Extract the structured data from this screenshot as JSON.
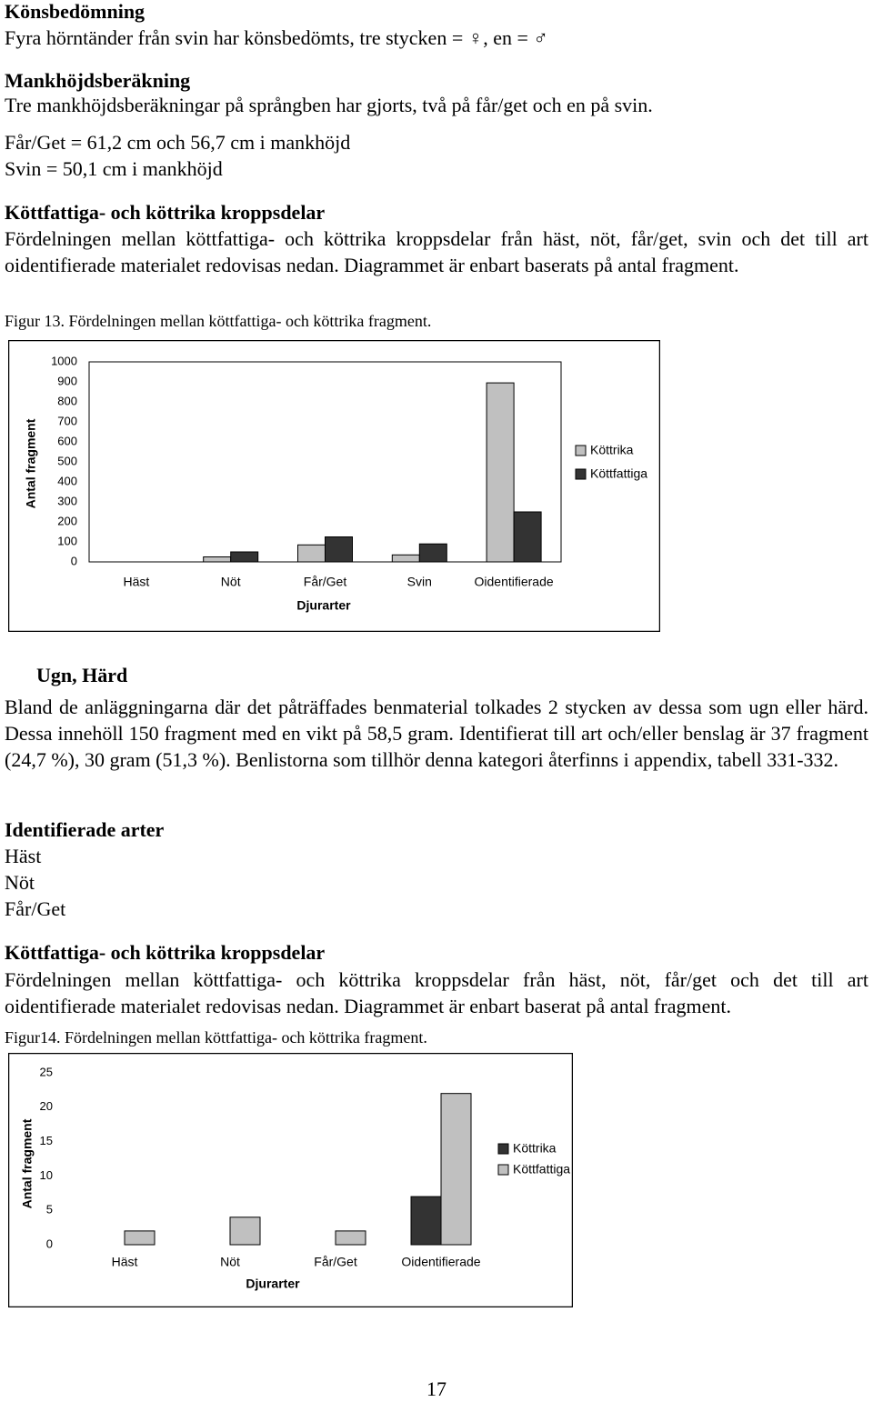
{
  "sections": [
    {
      "heading": "Könsbedömning",
      "paragraphs": [
        "Fyra hörntänder från svin har könsbedömts, tre stycken = ♀, en = ♂"
      ]
    },
    {
      "heading": "Mankhöjdsberäkning",
      "paragraphs": [
        "Tre mankhöjdsberäkningar på språngben har gjorts, två på får/get och en på svin.",
        "Får/Get = 61,2 cm och 56,7 cm i mankhöjd",
        "Svin = 50,1 cm i mankhöjd"
      ]
    },
    {
      "heading": "Köttfattiga- och köttrika kroppsdelar",
      "paragraphs": [
        "Fördelningen mellan köttfattiga- och köttrika kroppsdelar från häst, nöt, får/get, svin och det till art oidentifierade materialet redovisas nedan. Diagrammet är enbart baserats på antal fragment."
      ],
      "caption": "Figur 13. Fördelningen mellan köttfattiga- och köttrika fragment.",
      "figure": {
        "type": "bar",
        "x_label": "Djurarter",
        "y_label": "Antal fragment",
        "categories": [
          "Häst",
          "Nöt",
          "Får/Get",
          "Svin",
          "Oidentifierade"
        ],
        "series": [
          {
            "name": "Köttrika",
            "color": "#c0c0c0",
            "values": [
              0,
              25,
              85,
              35,
              895
            ]
          },
          {
            "name": "Köttfattiga",
            "color": "#333333",
            "values": [
              0,
              50,
              125,
              90,
              250
            ]
          }
        ],
        "ylim": [
          0,
          1000
        ],
        "yticks": [
          0,
          100,
          200,
          300,
          400,
          500,
          600,
          700,
          800,
          900,
          1000
        ],
        "frame": true
      }
    },
    {
      "heading": "Ugn, Härd",
      "paragraphs": [
        "Bland de anläggningarna där det påträffades benmaterial tolkades 2 stycken av dessa som ugn eller härd. Dessa innehöll 150 fragment med en vikt på 58,5 gram. Identifierat till art och/eller benslag är 37 fragment (24,7 %), 30 gram (51,3 %). Benlistorna som tillhör denna kategori återfinns i appendix, tabell 331-332."
      ]
    },
    {
      "heading": "Identifierade arter",
      "paragraphs": [
        "Häst",
        "Nöt",
        "Får/Get"
      ]
    },
    {
      "heading": "Köttfattiga- och köttrika kroppsdelar",
      "paragraphs": [
        "Fördelningen mellan köttfattiga- och köttrika kroppsdelar från häst, nöt, får/get och det till art oidentifierade materialet redovisas nedan. Diagrammet är enbart baserat på antal fragment."
      ],
      "caption": "Figur14. Fördelningen mellan köttfattiga- och köttrika fragment.",
      "figure": {
        "type": "bar",
        "x_label": "Djurarter",
        "y_label": "Antal fragment",
        "categories": [
          "Häst",
          "Nöt",
          "Får/Get",
          "Oidentifierade"
        ],
        "series": [
          {
            "name": "Köttrika",
            "color": "#333333",
            "values": [
              0,
              0,
              0,
              7
            ]
          },
          {
            "name": "Köttfattiga",
            "color": "#c0c0c0",
            "values": [
              2,
              4,
              2,
              22
            ]
          }
        ],
        "ylim": [
          0,
          25
        ],
        "yticks": [
          0,
          5,
          10,
          15,
          20,
          25
        ],
        "frame": false
      }
    }
  ],
  "page_number": "17"
}
